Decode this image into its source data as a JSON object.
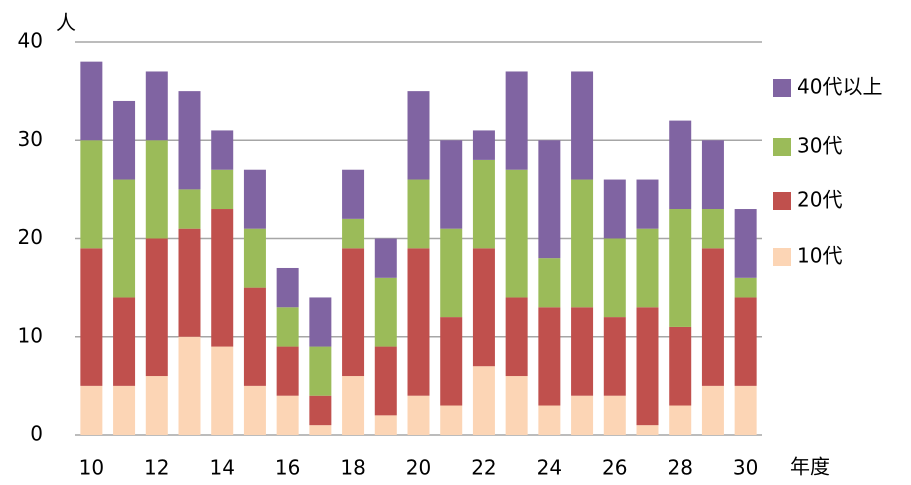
{
  "chart_data": {
    "type": "stacked_bar",
    "y_unit": "人",
    "x_label": "年度",
    "categories": [
      "10",
      null,
      "12",
      null,
      "14",
      null,
      "16",
      null,
      "18",
      null,
      "20",
      null,
      "22",
      null,
      "24",
      null,
      "26",
      null,
      "28",
      null,
      "30"
    ],
    "series": [
      {
        "name": "10代",
        "color": "#fcd5b5",
        "values": [
          5,
          5,
          6,
          10,
          9,
          5,
          4,
          1,
          6,
          2,
          4,
          3,
          7,
          6,
          3,
          4,
          4,
          1,
          3,
          5,
          5
        ]
      },
      {
        "name": "20代",
        "color": "#c0504d",
        "values": [
          14,
          9,
          14,
          11,
          14,
          10,
          5,
          3,
          13,
          7,
          15,
          9,
          12,
          8,
          10,
          9,
          8,
          12,
          8,
          14,
          9
        ]
      },
      {
        "name": "30代",
        "color": "#9bbb59",
        "values": [
          11,
          12,
          10,
          4,
          4,
          6,
          4,
          5,
          3,
          7,
          7,
          9,
          9,
          13,
          5,
          13,
          8,
          8,
          12,
          4,
          2
        ]
      },
      {
        "name": "40代以上",
        "color": "#8064a2",
        "values": [
          8,
          8,
          7,
          10,
          4,
          6,
          4,
          5,
          5,
          4,
          9,
          9,
          3,
          10,
          12,
          11,
          6,
          5,
          9,
          7,
          7
        ]
      }
    ],
    "ylim": [
      0,
      40
    ],
    "yticks": [
      0,
      10,
      20,
      30,
      40
    ],
    "grid": true
  }
}
